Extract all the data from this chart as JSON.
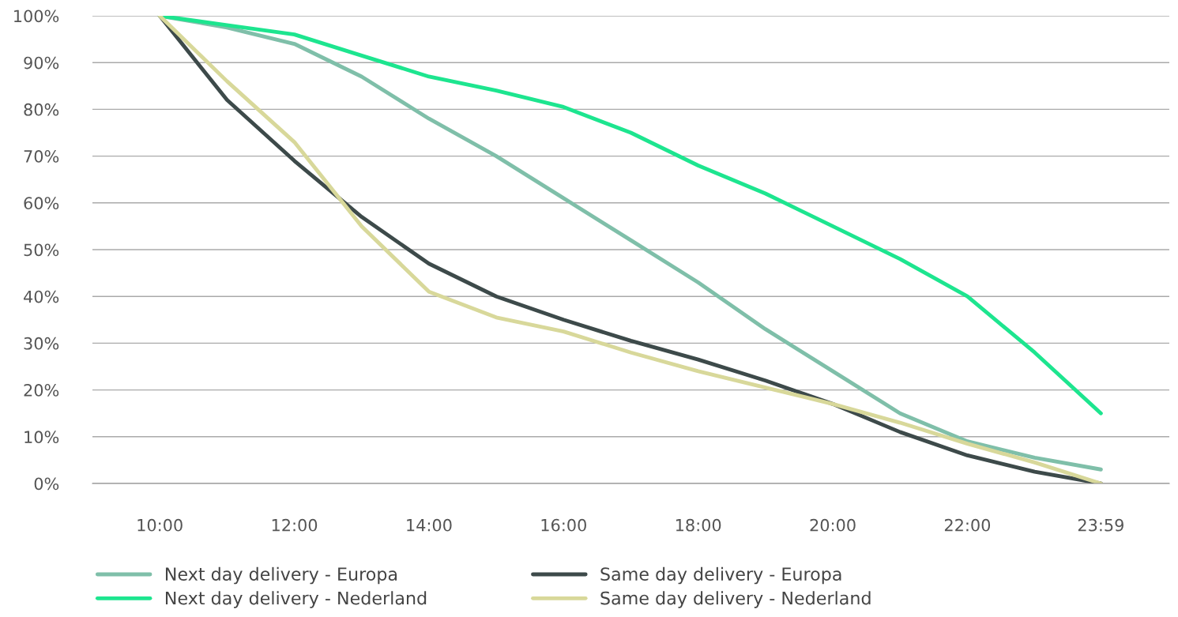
{
  "chart_data": {
    "type": "line",
    "x": [
      10,
      11,
      12,
      13,
      14,
      15,
      16,
      17,
      18,
      19,
      20,
      21,
      22,
      23,
      23.9833
    ],
    "series": [
      {
        "name": "Next day delivery - Europa",
        "color": "#7fbfa9",
        "values": [
          100,
          97.5,
          94,
          87,
          78,
          70,
          61,
          52,
          43,
          33,
          24,
          15,
          9,
          5.5,
          3
        ]
      },
      {
        "name": "Next day delivery - Nederland",
        "color": "#1de58f",
        "values": [
          100,
          98,
          96,
          91.5,
          87,
          84,
          80.5,
          75,
          68,
          62,
          55,
          48,
          40,
          28,
          15
        ]
      },
      {
        "name": "Same day delivery - Europa",
        "color": "#3d4a4a",
        "values": [
          100,
          82,
          69,
          57,
          47,
          40,
          35,
          30.5,
          26.5,
          22,
          17,
          11,
          6,
          2.5,
          0
        ]
      },
      {
        "name": "Same day delivery - Nederland",
        "color": "#d8d89a",
        "values": [
          100,
          86,
          73,
          55,
          41,
          35.5,
          32.5,
          28,
          24,
          20.5,
          17,
          13,
          8.5,
          4.5,
          0
        ]
      }
    ],
    "xlim": [
      9,
      25
    ],
    "xticks": [
      {
        "value": 10,
        "label": "10:00"
      },
      {
        "value": 12,
        "label": "12:00"
      },
      {
        "value": 14,
        "label": "14:00"
      },
      {
        "value": 16,
        "label": "16:00"
      },
      {
        "value": 18,
        "label": "18:00"
      },
      {
        "value": 20,
        "label": "20:00"
      },
      {
        "value": 22,
        "label": "22:00"
      },
      {
        "value": 23.9833,
        "label": "23:59"
      }
    ],
    "ylim": [
      0,
      100
    ],
    "yticks": [
      {
        "value": 0,
        "label": "0%"
      },
      {
        "value": 10,
        "label": "10%"
      },
      {
        "value": 20,
        "label": "20%"
      },
      {
        "value": 30,
        "label": "30%"
      },
      {
        "value": 40,
        "label": "40%"
      },
      {
        "value": 50,
        "label": "50%"
      },
      {
        "value": 60,
        "label": "60%"
      },
      {
        "value": 70,
        "label": "70%"
      },
      {
        "value": 80,
        "label": "80%"
      },
      {
        "value": 90,
        "label": "90%"
      },
      {
        "value": 100,
        "label": "100%"
      }
    ],
    "grid": "y",
    "legend": "bottom",
    "marker": "none",
    "line_style": "solid"
  }
}
